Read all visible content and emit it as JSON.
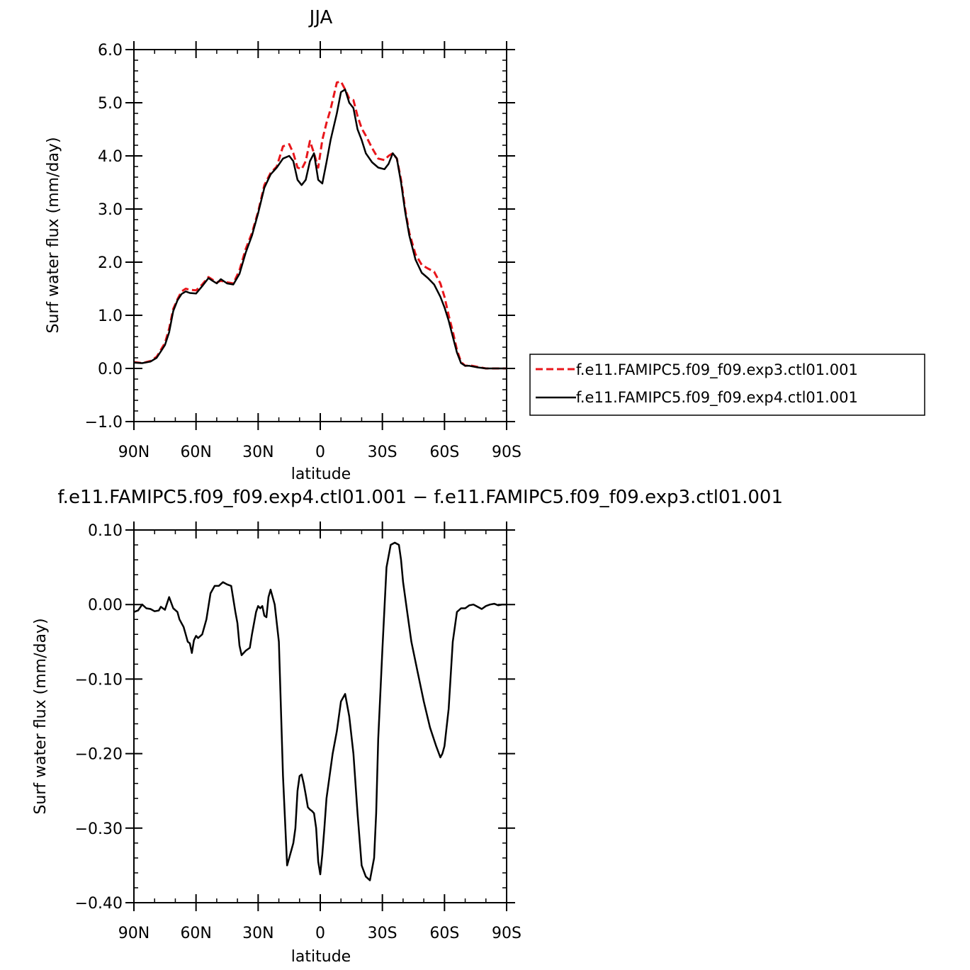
{
  "chart_data": [
    {
      "type": "line",
      "title": "JJA",
      "xlabel": "latitude",
      "ylabel": "Surf water flux (mm/day)",
      "xlim": [
        90,
        -90
      ],
      "ylim": [
        -1.0,
        6.0
      ],
      "yticks": [
        {
          "value": -1.0,
          "label": "−1.0"
        },
        {
          "value": 0.0,
          "label": "0.0"
        },
        {
          "value": 1.0,
          "label": "1.0"
        },
        {
          "value": 2.0,
          "label": "2.0"
        },
        {
          "value": 3.0,
          "label": "3.0"
        },
        {
          "value": 4.0,
          "label": "4.0"
        },
        {
          "value": 5.0,
          "label": "5.0"
        },
        {
          "value": 6.0,
          "label": "6.0"
        }
      ],
      "xticks": [
        {
          "value": 90,
          "label": "90N"
        },
        {
          "value": 60,
          "label": "60N"
        },
        {
          "value": 30,
          "label": "30N"
        },
        {
          "value": 0,
          "label": "0"
        },
        {
          "value": -30,
          "label": "30S"
        },
        {
          "value": -60,
          "label": "60S"
        },
        {
          "value": -90,
          "label": "90S"
        }
      ],
      "grid": false,
      "legend_position": "right",
      "series": [
        {
          "name": "f.e11.FAMIPC5.f09_f09.exp3.ctl01.001",
          "color": "#e8161b",
          "dash": "dashed",
          "x": [
            90,
            86,
            82,
            79,
            77,
            75,
            73,
            71,
            69,
            67,
            65,
            63,
            60,
            57,
            54,
            52,
            50,
            48,
            45,
            42,
            39,
            36,
            33,
            30,
            27,
            24,
            21,
            18,
            15,
            13,
            11,
            9,
            7,
            5,
            3,
            1,
            -1,
            -3,
            -5,
            -8,
            -10,
            -12,
            -14,
            -16,
            -18,
            -20,
            -22,
            -25,
            -28,
            -31,
            -33,
            -35,
            -37,
            -39,
            -41,
            -43,
            -46,
            -49,
            -52,
            -55,
            -58,
            -60,
            -62,
            -64,
            -66,
            -68,
            -70,
            -72,
            -76,
            -80,
            -84,
            -90
          ],
          "y": [
            0.12,
            0.1,
            0.14,
            0.22,
            0.35,
            0.48,
            0.75,
            1.12,
            1.3,
            1.45,
            1.5,
            1.48,
            1.47,
            1.58,
            1.72,
            1.67,
            1.62,
            1.65,
            1.62,
            1.6,
            1.85,
            2.25,
            2.55,
            2.95,
            3.45,
            3.68,
            3.8,
            4.18,
            4.22,
            4.05,
            3.78,
            3.75,
            3.9,
            4.28,
            4.05,
            3.78,
            4.3,
            4.62,
            4.88,
            5.38,
            5.4,
            5.25,
            5.08,
            5.05,
            4.75,
            4.52,
            4.38,
            4.15,
            3.95,
            3.92,
            4.0,
            4.05,
            3.95,
            3.55,
            3.0,
            2.55,
            2.15,
            1.95,
            1.88,
            1.82,
            1.6,
            1.35,
            1.0,
            0.7,
            0.35,
            0.12,
            0.05,
            0.06,
            0.03,
            0.0,
            0.0,
            0.0
          ]
        },
        {
          "name": "f.e11.FAMIPC5.f09_f09.exp4.ctl01.001",
          "color": "#000000",
          "dash": "solid",
          "x": [
            90,
            86,
            82,
            79,
            77,
            75,
            73,
            71,
            69,
            67,
            65,
            63,
            60,
            57,
            54,
            52,
            50,
            48,
            45,
            42,
            39,
            36,
            33,
            30,
            27,
            24,
            21,
            18,
            15,
            13,
            11,
            9,
            7,
            5,
            3,
            1,
            -1,
            -3,
            -5,
            -8,
            -10,
            -12,
            -14,
            -16,
            -18,
            -20,
            -22,
            -25,
            -28,
            -31,
            -33,
            -35,
            -37,
            -39,
            -41,
            -43,
            -46,
            -49,
            -52,
            -55,
            -58,
            -60,
            -62,
            -64,
            -66,
            -68,
            -70,
            -72,
            -76,
            -80,
            -84,
            -90
          ],
          "y": [
            0.11,
            0.1,
            0.13,
            0.2,
            0.32,
            0.44,
            0.68,
            1.08,
            1.28,
            1.4,
            1.45,
            1.42,
            1.41,
            1.55,
            1.7,
            1.65,
            1.6,
            1.68,
            1.6,
            1.58,
            1.78,
            2.18,
            2.5,
            2.92,
            3.4,
            3.65,
            3.78,
            3.95,
            4.0,
            3.9,
            3.55,
            3.45,
            3.55,
            3.9,
            4.05,
            3.55,
            3.48,
            3.88,
            4.3,
            4.8,
            5.2,
            5.25,
            5.0,
            4.9,
            4.5,
            4.3,
            4.05,
            3.88,
            3.78,
            3.75,
            3.85,
            4.05,
            3.95,
            3.5,
            2.95,
            2.5,
            2.05,
            1.8,
            1.7,
            1.58,
            1.35,
            1.15,
            0.9,
            0.6,
            0.3,
            0.1,
            0.05,
            0.05,
            0.02,
            0.0,
            0.0,
            0.0
          ]
        }
      ]
    },
    {
      "type": "line",
      "title": "f.e11.FAMIPC5.f09_f09.exp4.ctl01.001 − f.e11.FAMIPC5.f09_f09.exp3.ctl01.001",
      "xlabel": "latitude",
      "ylabel": "Surf water flux (mm/day)",
      "xlim": [
        90,
        -90
      ],
      "ylim": [
        -0.4,
        0.1
      ],
      "yticks": [
        {
          "value": -0.4,
          "label": "−0.40"
        },
        {
          "value": -0.3,
          "label": "−0.30"
        },
        {
          "value": -0.2,
          "label": "−0.20"
        },
        {
          "value": -0.1,
          "label": "−0.10"
        },
        {
          "value": 0.0,
          "label": "0.00"
        },
        {
          "value": 0.1,
          "label": "0.10"
        }
      ],
      "xticks": [
        {
          "value": 90,
          "label": "90N"
        },
        {
          "value": 60,
          "label": "60N"
        },
        {
          "value": 30,
          "label": "30N"
        },
        {
          "value": 0,
          "label": "0"
        },
        {
          "value": -30,
          "label": "30S"
        },
        {
          "value": -60,
          "label": "60S"
        },
        {
          "value": -90,
          "label": "90S"
        }
      ],
      "grid": false,
      "series": [
        {
          "name": "",
          "color": "#000000",
          "dash": "solid",
          "x": [
            90,
            88,
            86,
            84,
            82,
            80,
            78,
            77,
            75,
            73,
            71,
            69,
            68,
            66,
            65,
            64,
            63,
            62,
            61,
            60,
            59,
            57,
            55,
            53,
            51,
            49,
            47,
            45,
            43,
            41,
            40,
            39,
            38,
            36,
            34,
            33,
            31,
            30,
            29,
            28,
            27,
            26,
            25,
            24,
            22,
            20,
            18,
            16,
            14,
            13,
            12,
            11,
            10,
            9,
            8,
            7,
            6,
            5,
            4,
            3,
            2,
            1,
            0,
            -1,
            -2,
            -3,
            -4,
            -6,
            -8,
            -10,
            -12,
            -14,
            -16,
            -18,
            -20,
            -22,
            -24,
            -26,
            -27,
            -28,
            -30,
            -32,
            -34,
            -36,
            -38,
            -39,
            -40,
            -42,
            -44,
            -47,
            -50,
            -53,
            -56,
            -58,
            -59,
            -60,
            -62,
            -64,
            -66,
            -68,
            -70,
            -72,
            -74,
            -76,
            -78,
            -80,
            -82,
            -84,
            -86,
            -88,
            -90
          ],
          "y": [
            -0.01,
            -0.008,
            0.0,
            -0.005,
            -0.006,
            -0.009,
            -0.008,
            -0.003,
            -0.007,
            0.01,
            -0.005,
            -0.01,
            -0.02,
            -0.03,
            -0.04,
            -0.05,
            -0.052,
            -0.065,
            -0.048,
            -0.042,
            -0.045,
            -0.04,
            -0.02,
            0.015,
            0.025,
            0.025,
            0.03,
            0.027,
            0.025,
            -0.01,
            -0.025,
            -0.055,
            -0.068,
            -0.062,
            -0.058,
            -0.04,
            -0.01,
            -0.002,
            -0.005,
            -0.002,
            -0.015,
            -0.017,
            0.01,
            0.02,
            0.0,
            -0.05,
            -0.23,
            -0.35,
            -0.33,
            -0.32,
            -0.3,
            -0.25,
            -0.23,
            -0.228,
            -0.24,
            -0.255,
            -0.272,
            -0.275,
            -0.277,
            -0.28,
            -0.3,
            -0.345,
            -0.362,
            -0.335,
            -0.3,
            -0.26,
            -0.24,
            -0.2,
            -0.17,
            -0.13,
            -0.12,
            -0.15,
            -0.2,
            -0.28,
            -0.35,
            -0.365,
            -0.37,
            -0.34,
            -0.28,
            -0.18,
            -0.06,
            0.05,
            0.08,
            0.083,
            0.08,
            0.06,
            0.03,
            -0.01,
            -0.05,
            -0.09,
            -0.13,
            -0.165,
            -0.19,
            -0.205,
            -0.2,
            -0.19,
            -0.14,
            -0.05,
            -0.01,
            -0.005,
            -0.005,
            -0.001,
            0.0,
            -0.003,
            -0.006,
            -0.002,
            0.0,
            0.001,
            -0.001,
            0.0,
            0.0
          ]
        }
      ]
    }
  ]
}
